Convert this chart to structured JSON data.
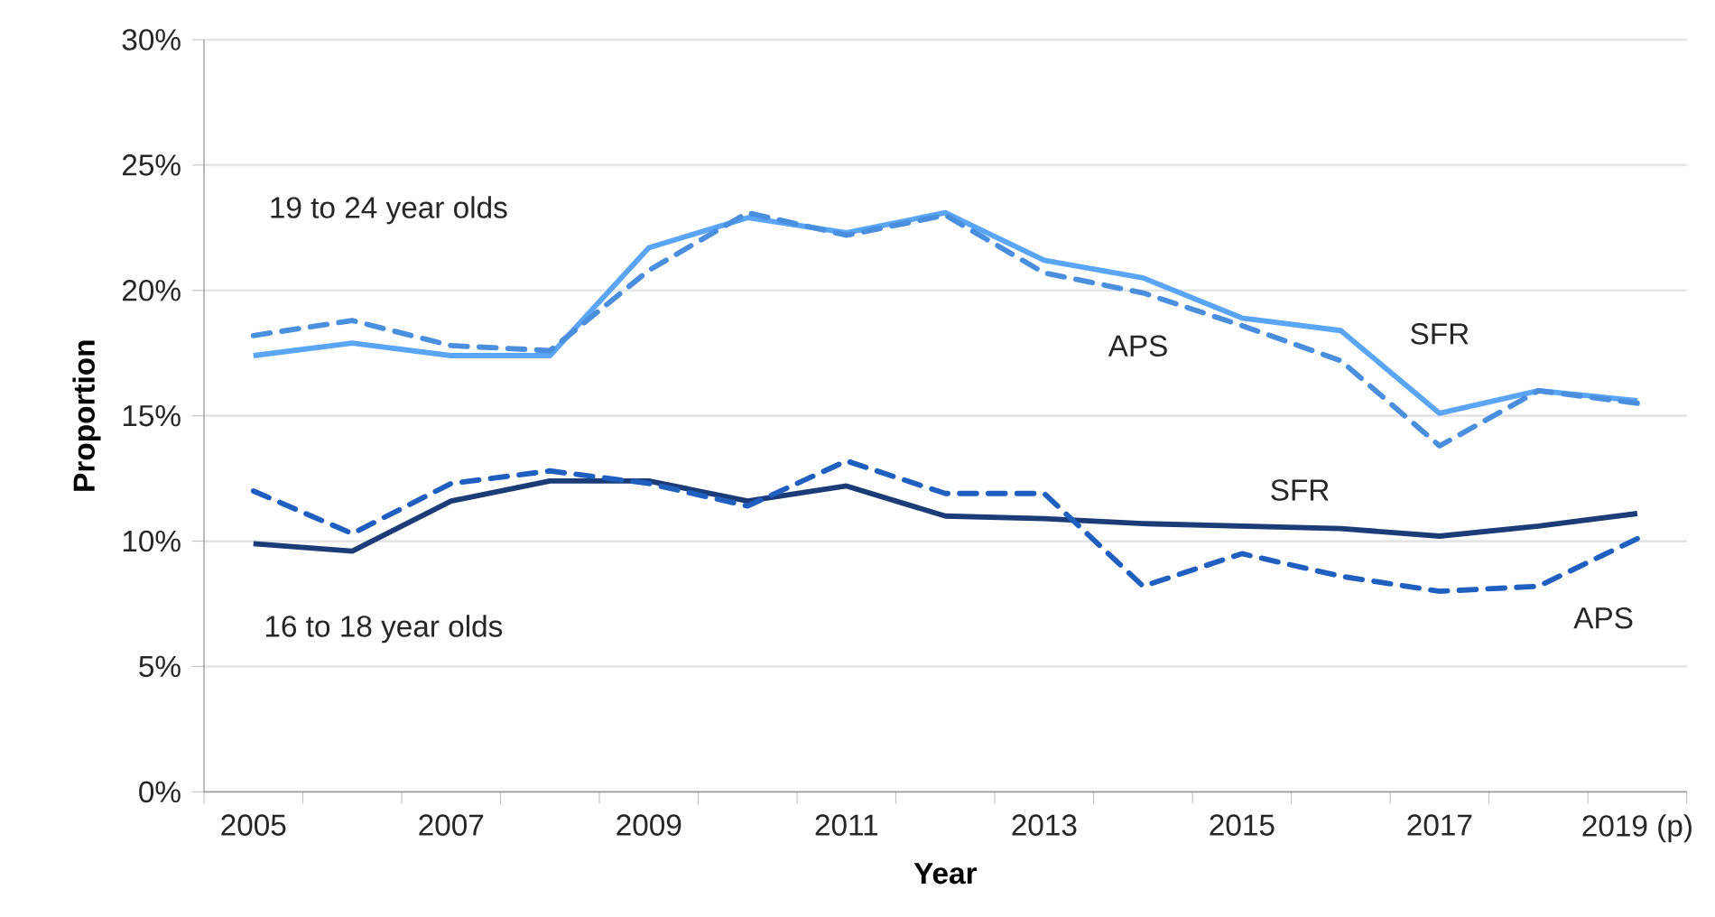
{
  "chart_data": {
    "type": "line",
    "xlabel": "Year",
    "ylabel": "Proportion",
    "categories": [
      "2005",
      null,
      "2007",
      null,
      "2009",
      null,
      "2011",
      null,
      "2013",
      null,
      "2015",
      null,
      "2017",
      null,
      "2019 (p)"
    ],
    "series": [
      {
        "name": "SFR",
        "color": "#5aa5f5",
        "line_style": "solid",
        "values": [
          17.4,
          17.9,
          17.4,
          17.4,
          21.7,
          22.9,
          22.3,
          23.1,
          21.2,
          20.5,
          18.9,
          18.4,
          15.1,
          16.0,
          15.6
        ]
      },
      {
        "name": "APS",
        "color": "#4a8ede",
        "line_style": "dashed",
        "values": [
          18.2,
          18.8,
          17.8,
          17.6,
          20.8,
          23.1,
          22.2,
          23.0,
          20.7,
          19.9,
          18.6,
          17.2,
          13.8,
          16.0,
          15.5
        ]
      },
      {
        "name": "SFR",
        "color": "#1c3c78",
        "line_style": "solid",
        "values": [
          9.9,
          9.6,
          11.6,
          12.4,
          12.4,
          11.6,
          12.2,
          11.0,
          10.9,
          10.7,
          10.6,
          10.5,
          10.2,
          10.6,
          11.1
        ]
      },
      {
        "name": "APS",
        "color": "#1f5fbf",
        "line_style": "dashed",
        "values": [
          12.0,
          10.3,
          12.3,
          12.8,
          12.3,
          11.4,
          13.2,
          11.9,
          11.9,
          8.2,
          9.5,
          8.6,
          8.0,
          8.2,
          10.1
        ]
      }
    ],
    "ylim": [
      0,
      30
    ],
    "yticks": [
      {
        "value": 0,
        "label": "0%"
      },
      {
        "value": 5,
        "label": "5%"
      },
      {
        "value": 10,
        "label": "10%"
      },
      {
        "value": 15,
        "label": "15%"
      },
      {
        "value": 20,
        "label": "20%"
      },
      {
        "value": 25,
        "label": "25%"
      },
      {
        "value": 30,
        "label": "30%"
      }
    ],
    "grid": "y",
    "legend": false,
    "marker": "none",
    "annotations": [
      "19 to 24 year olds",
      "16 to 18 year olds"
    ]
  }
}
